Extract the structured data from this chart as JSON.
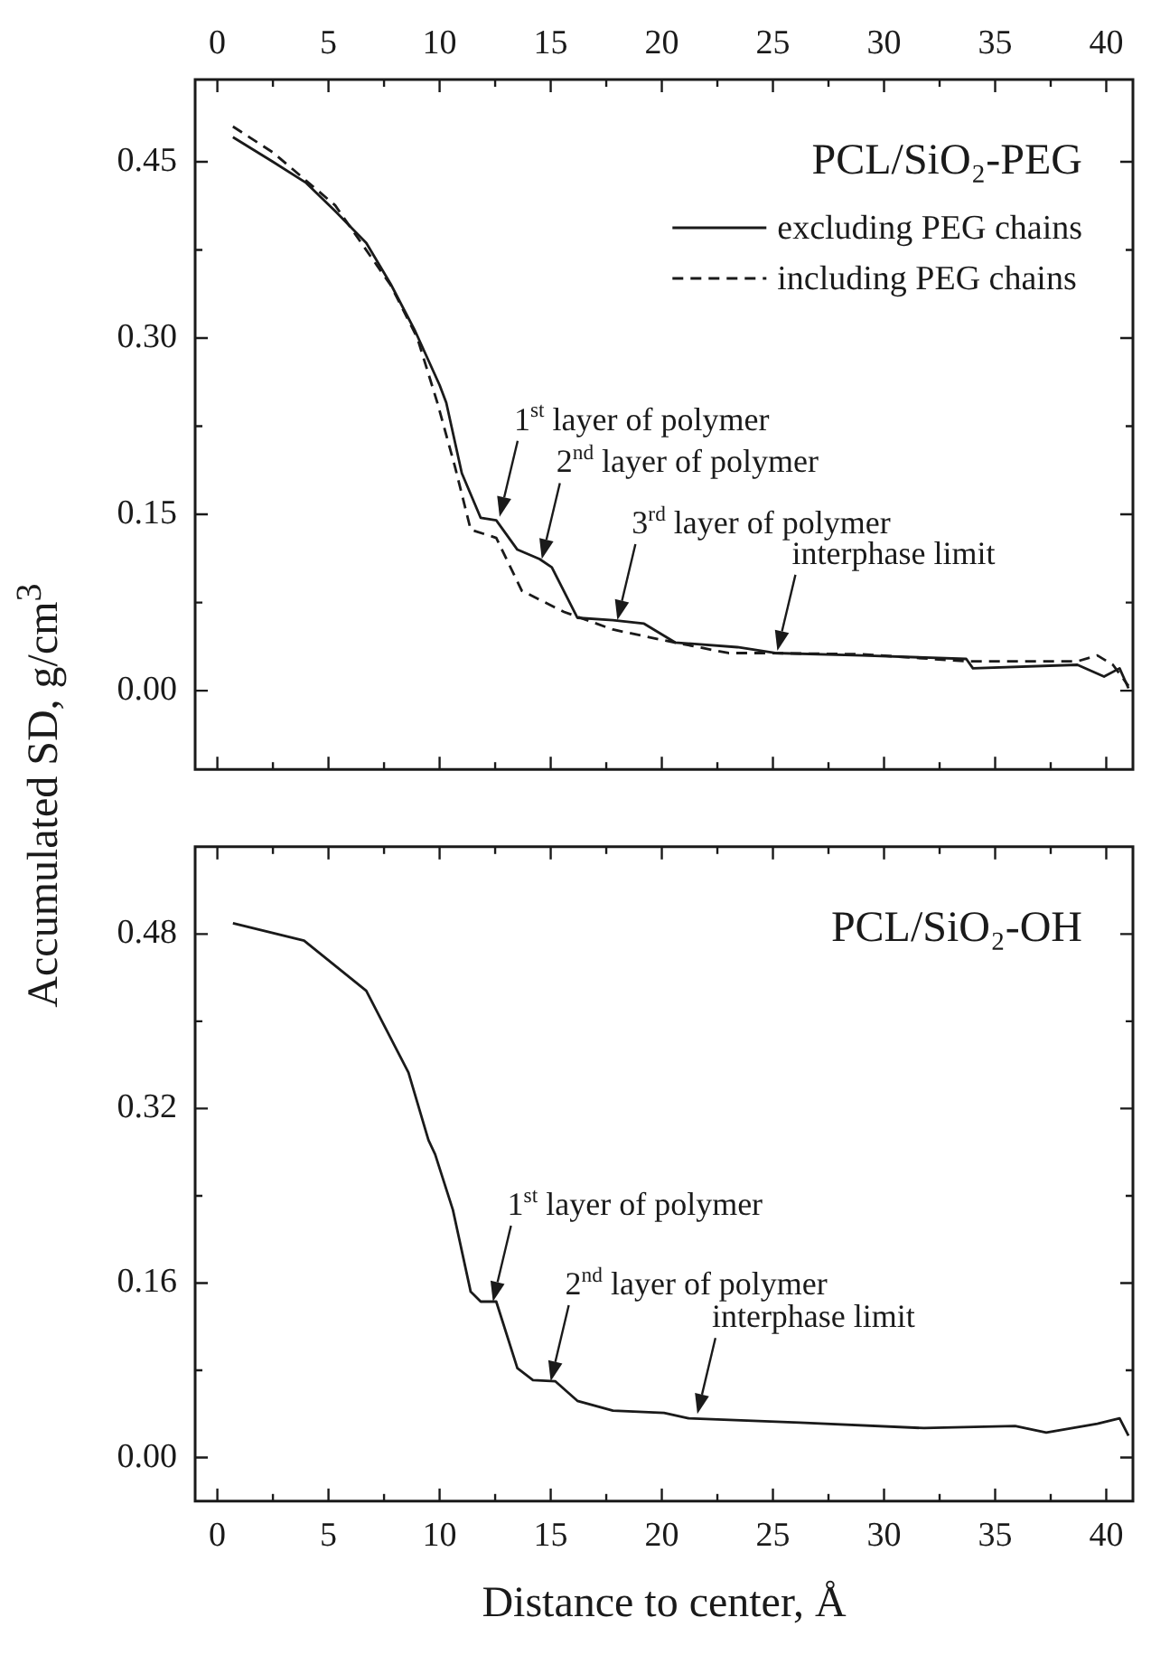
{
  "chart_data": [
    {
      "type": "line",
      "title": "PCL/SiO₂-PEG",
      "ylabel": "Accumulated SD, g/cm$^{3}$",
      "legend": "top right",
      "xlim": [
        -1,
        41.2
      ],
      "ylim": [
        -0.067,
        0.52
      ],
      "xticks": [
        0,
        {
          "value": 2.5,
          "label": null
        },
        5,
        {
          "value": 7.5,
          "label": null
        },
        10,
        {
          "value": 12.5,
          "label": null
        },
        15,
        {
          "value": 17.5,
          "label": null
        },
        20,
        {
          "value": 22.5,
          "label": null
        },
        25,
        {
          "value": 27.5,
          "label": null
        },
        30,
        {
          "value": 32.5,
          "label": null
        },
        35,
        {
          "value": 37.5,
          "label": null
        },
        40
      ],
      "yticks": [
        {
          "value": 0,
          "label": "0.00"
        },
        {
          "value": 0.075,
          "label": null
        },
        {
          "value": 0.15,
          "label": "0.15"
        },
        {
          "value": 0.225,
          "label": null
        },
        {
          "value": 0.3,
          "label": "0.30"
        },
        {
          "value": 0.375,
          "label": null
        },
        {
          "value": 0.45,
          "label": "0.45"
        }
      ],
      "series": [
        {
          "name": "excluding PEG chains",
          "color": "#1a1a1a",
          "line_style": "solid",
          "x": [
            0.7,
            2.5,
            4.0,
            5.3,
            6.7,
            7.8,
            8.9,
            10.0,
            10.3,
            11.0,
            11.85,
            12.55,
            13.5,
            14.5,
            15.05,
            16.2,
            17.8,
            19.2,
            20.6,
            23.4,
            25.1,
            29.0,
            33.7,
            34.0,
            38.7,
            39.9,
            40.6,
            41.0
          ],
          "values": [
            0.471,
            0.45,
            0.432,
            0.408,
            0.381,
            0.346,
            0.306,
            0.26,
            0.245,
            0.185,
            0.147,
            0.145,
            0.12,
            0.112,
            0.105,
            0.062,
            0.06,
            0.057,
            0.041,
            0.037,
            0.032,
            0.03,
            0.027,
            0.019,
            0.022,
            0.012,
            0.019,
            0.002
          ]
        },
        {
          "name": "including PEG chains",
          "color": "#1a1a1a",
          "line_style": "dashed",
          "x": [
            0.7,
            2.5,
            5.3,
            7.8,
            9.0,
            9.9,
            10.7,
            11.4,
            12.55,
            13.7,
            15.6,
            17.8,
            20.3,
            23.0,
            24.5,
            29.0,
            33.7,
            38.7,
            39.6,
            40.3,
            41.0
          ],
          "values": [
            0.48,
            0.458,
            0.413,
            0.345,
            0.3,
            0.245,
            0.19,
            0.137,
            0.13,
            0.085,
            0.067,
            0.052,
            0.042,
            0.032,
            0.032,
            0.031,
            0.025,
            0.025,
            0.03,
            0.022,
            0.004
          ]
        }
      ],
      "annotations": [
        {
          "text": "1$^{st}$ layer of polymer",
          "x": 12.7,
          "y": 0.148
        },
        {
          "text": "2$^{nd}$ layer of polymer",
          "x": 14.6,
          "y": 0.112
        },
        {
          "text": "3$^{rd}$ layer of polymer",
          "x": 18.0,
          "y": 0.06
        },
        {
          "text": "interphase limit",
          "x": 25.2,
          "y": 0.034
        }
      ]
    },
    {
      "type": "line",
      "title": "PCL/SiO₂-OH",
      "xlabel": "Distance to center, Å",
      "xlim": [
        -1,
        41.2
      ],
      "ylim": [
        -0.04,
        0.56
      ],
      "xticks": [
        0,
        {
          "value": 2.5,
          "label": null
        },
        5,
        {
          "value": 7.5,
          "label": null
        },
        10,
        {
          "value": 12.5,
          "label": null
        },
        15,
        {
          "value": 17.5,
          "label": null
        },
        20,
        {
          "value": 22.5,
          "label": null
        },
        25,
        {
          "value": 27.5,
          "label": null
        },
        30,
        {
          "value": 32.5,
          "label": null
        },
        35,
        {
          "value": 37.5,
          "label": null
        },
        40
      ],
      "yticks": [
        {
          "value": 0,
          "label": "0.00"
        },
        {
          "value": 0.08,
          "label": null
        },
        {
          "value": 0.16,
          "label": "0.16"
        },
        {
          "value": 0.24,
          "label": null
        },
        {
          "value": 0.32,
          "label": "0.32"
        },
        {
          "value": 0.4,
          "label": null
        },
        {
          "value": 0.48,
          "label": "0.48"
        }
      ],
      "series": [
        {
          "color": "#1a1a1a",
          "line_style": "solid",
          "x": [
            0.7,
            3.9,
            6.7,
            8.6,
            9.5,
            9.8,
            10.6,
            11.4,
            11.85,
            12.55,
            13.5,
            14.2,
            15.2,
            16.2,
            17.8,
            20.1,
            21.2,
            26.2,
            31.8,
            35.9,
            37.3,
            39.6,
            40.6,
            41.0
          ],
          "values": [
            0.49,
            0.474,
            0.428,
            0.353,
            0.291,
            0.278,
            0.227,
            0.152,
            0.143,
            0.143,
            0.082,
            0.071,
            0.07,
            0.052,
            0.043,
            0.041,
            0.036,
            0.032,
            0.027,
            0.029,
            0.023,
            0.031,
            0.036,
            0.02
          ]
        }
      ],
      "annotations": [
        {
          "text": "1$^{st}$ layer of polymer",
          "x": 12.4,
          "y": 0.143
        },
        {
          "text": "2$^{nd}$ layer of polymer",
          "x": 15.0,
          "y": 0.07
        },
        {
          "text": "interphase limit",
          "x": 21.6,
          "y": 0.04
        }
      ]
    }
  ]
}
